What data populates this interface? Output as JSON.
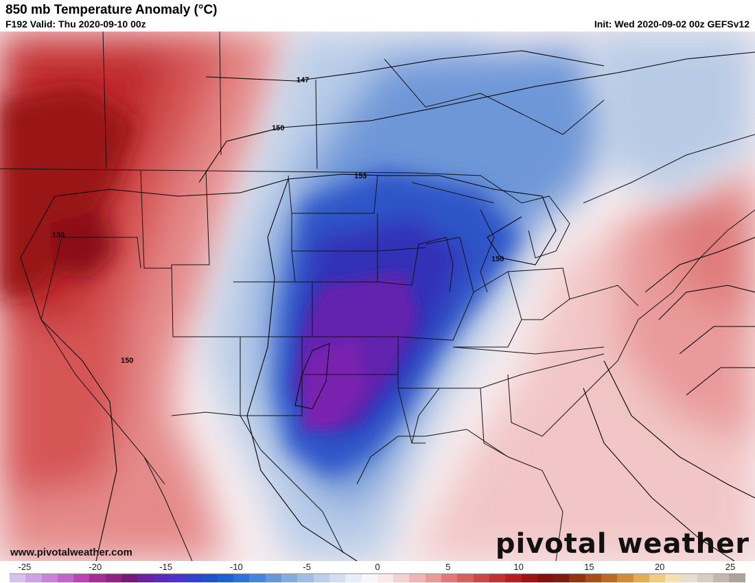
{
  "header": {
    "title": "850 mb Temperature Anomaly (°C)",
    "valid": "F192 Valid: Thu 2020-09-10 00z",
    "init": "Init: Wed 2020-09-02 00z GEFSv12"
  },
  "footer": {
    "website": "www.pivotalweather.com",
    "brand": "pivotal weather"
  },
  "contour_labels": [
    "147",
    "150",
    "153",
    "150",
    "150",
    "150"
  ],
  "colorbar": {
    "ticks": [
      {
        "label": "-25",
        "value": -25
      },
      {
        "label": "-20",
        "value": -20
      },
      {
        "label": "-15",
        "value": -15
      },
      {
        "label": "-10",
        "value": -10
      },
      {
        "label": "-5",
        "value": -5
      },
      {
        "label": "0",
        "value": 0
      },
      {
        "label": "5",
        "value": 5
      },
      {
        "label": "10",
        "value": 10
      },
      {
        "label": "15",
        "value": 15
      },
      {
        "label": "20",
        "value": 20
      },
      {
        "label": "25",
        "value": 25
      }
    ],
    "colors": [
      "#d9c2ea",
      "#cda3e3",
      "#c784d6",
      "#c265c8",
      "#b945b0",
      "#a62f96",
      "#8f2480",
      "#741b7a",
      "#6a23a0",
      "#5b2ab8",
      "#4b34c6",
      "#3441c7",
      "#2450c8",
      "#1e60cf",
      "#2d72d8",
      "#4a85dc",
      "#6998d8",
      "#86abdc",
      "#a2bde1",
      "#bccfe8",
      "#d3dff0",
      "#e8eef7",
      "#f7f7fb",
      "#fbe8e8",
      "#f6d1d1",
      "#f0b6b6",
      "#ea9999",
      "#e07a7a",
      "#d65f5f",
      "#cc4747",
      "#c13232",
      "#b42020",
      "#9e1414",
      "#861010",
      "#7a1e0f",
      "#8f3513",
      "#a54f1b",
      "#bb6a27",
      "#d08b3b",
      "#e2ad5a",
      "#efcb85",
      "#f5e0b5",
      "#e8ddd2",
      "#d6cdc4",
      "#c3b8ae",
      "#aea399"
    ]
  },
  "colors": {
    "warm_deep": "#b01a1f",
    "warm_mid": "#d95050",
    "warm_light": "#f0b0b0",
    "cool_light": "#c8d8ef",
    "cool_mid": "#3d6fd0",
    "cool_deep": "#2233b8",
    "purple_core": "#6a26b0",
    "neutral": "#f5f2f4"
  }
}
